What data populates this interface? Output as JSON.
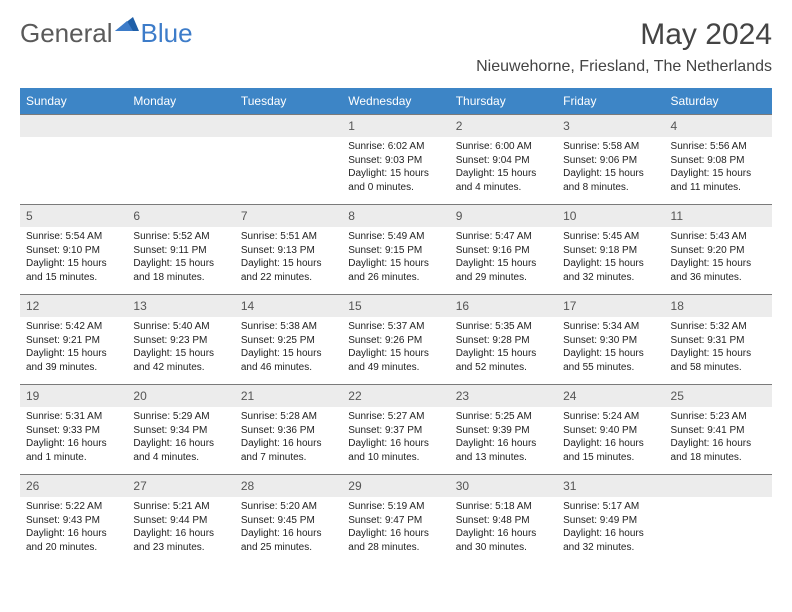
{
  "brand": {
    "part1": "General",
    "part2": "Blue",
    "color1": "#5a5a5a",
    "color2": "#3d7cc9"
  },
  "title": "May 2024",
  "location": "Nieuwehorne, Friesland, The Netherlands",
  "header_bg": "#3d85c6",
  "daynum_bg": "#ececec",
  "border_color": "#7a7a7a",
  "text_color": "#222222",
  "font_size_content": 10,
  "weekdays": [
    "Sunday",
    "Monday",
    "Tuesday",
    "Wednesday",
    "Thursday",
    "Friday",
    "Saturday"
  ],
  "weeks": [
    [
      null,
      null,
      null,
      {
        "n": "1",
        "sr": "6:02 AM",
        "ss": "9:03 PM",
        "dl": "15 hours and 0 minutes."
      },
      {
        "n": "2",
        "sr": "6:00 AM",
        "ss": "9:04 PM",
        "dl": "15 hours and 4 minutes."
      },
      {
        "n": "3",
        "sr": "5:58 AM",
        "ss": "9:06 PM",
        "dl": "15 hours and 8 minutes."
      },
      {
        "n": "4",
        "sr": "5:56 AM",
        "ss": "9:08 PM",
        "dl": "15 hours and 11 minutes."
      }
    ],
    [
      {
        "n": "5",
        "sr": "5:54 AM",
        "ss": "9:10 PM",
        "dl": "15 hours and 15 minutes."
      },
      {
        "n": "6",
        "sr": "5:52 AM",
        "ss": "9:11 PM",
        "dl": "15 hours and 18 minutes."
      },
      {
        "n": "7",
        "sr": "5:51 AM",
        "ss": "9:13 PM",
        "dl": "15 hours and 22 minutes."
      },
      {
        "n": "8",
        "sr": "5:49 AM",
        "ss": "9:15 PM",
        "dl": "15 hours and 26 minutes."
      },
      {
        "n": "9",
        "sr": "5:47 AM",
        "ss": "9:16 PM",
        "dl": "15 hours and 29 minutes."
      },
      {
        "n": "10",
        "sr": "5:45 AM",
        "ss": "9:18 PM",
        "dl": "15 hours and 32 minutes."
      },
      {
        "n": "11",
        "sr": "5:43 AM",
        "ss": "9:20 PM",
        "dl": "15 hours and 36 minutes."
      }
    ],
    [
      {
        "n": "12",
        "sr": "5:42 AM",
        "ss": "9:21 PM",
        "dl": "15 hours and 39 minutes."
      },
      {
        "n": "13",
        "sr": "5:40 AM",
        "ss": "9:23 PM",
        "dl": "15 hours and 42 minutes."
      },
      {
        "n": "14",
        "sr": "5:38 AM",
        "ss": "9:25 PM",
        "dl": "15 hours and 46 minutes."
      },
      {
        "n": "15",
        "sr": "5:37 AM",
        "ss": "9:26 PM",
        "dl": "15 hours and 49 minutes."
      },
      {
        "n": "16",
        "sr": "5:35 AM",
        "ss": "9:28 PM",
        "dl": "15 hours and 52 minutes."
      },
      {
        "n": "17",
        "sr": "5:34 AM",
        "ss": "9:30 PM",
        "dl": "15 hours and 55 minutes."
      },
      {
        "n": "18",
        "sr": "5:32 AM",
        "ss": "9:31 PM",
        "dl": "15 hours and 58 minutes."
      }
    ],
    [
      {
        "n": "19",
        "sr": "5:31 AM",
        "ss": "9:33 PM",
        "dl": "16 hours and 1 minute."
      },
      {
        "n": "20",
        "sr": "5:29 AM",
        "ss": "9:34 PM",
        "dl": "16 hours and 4 minutes."
      },
      {
        "n": "21",
        "sr": "5:28 AM",
        "ss": "9:36 PM",
        "dl": "16 hours and 7 minutes."
      },
      {
        "n": "22",
        "sr": "5:27 AM",
        "ss": "9:37 PM",
        "dl": "16 hours and 10 minutes."
      },
      {
        "n": "23",
        "sr": "5:25 AM",
        "ss": "9:39 PM",
        "dl": "16 hours and 13 minutes."
      },
      {
        "n": "24",
        "sr": "5:24 AM",
        "ss": "9:40 PM",
        "dl": "16 hours and 15 minutes."
      },
      {
        "n": "25",
        "sr": "5:23 AM",
        "ss": "9:41 PM",
        "dl": "16 hours and 18 minutes."
      }
    ],
    [
      {
        "n": "26",
        "sr": "5:22 AM",
        "ss": "9:43 PM",
        "dl": "16 hours and 20 minutes."
      },
      {
        "n": "27",
        "sr": "5:21 AM",
        "ss": "9:44 PM",
        "dl": "16 hours and 23 minutes."
      },
      {
        "n": "28",
        "sr": "5:20 AM",
        "ss": "9:45 PM",
        "dl": "16 hours and 25 minutes."
      },
      {
        "n": "29",
        "sr": "5:19 AM",
        "ss": "9:47 PM",
        "dl": "16 hours and 28 minutes."
      },
      {
        "n": "30",
        "sr": "5:18 AM",
        "ss": "9:48 PM",
        "dl": "16 hours and 30 minutes."
      },
      {
        "n": "31",
        "sr": "5:17 AM",
        "ss": "9:49 PM",
        "dl": "16 hours and 32 minutes."
      },
      null
    ]
  ],
  "labels": {
    "sunrise": "Sunrise:",
    "sunset": "Sunset:",
    "daylight": "Daylight:"
  }
}
